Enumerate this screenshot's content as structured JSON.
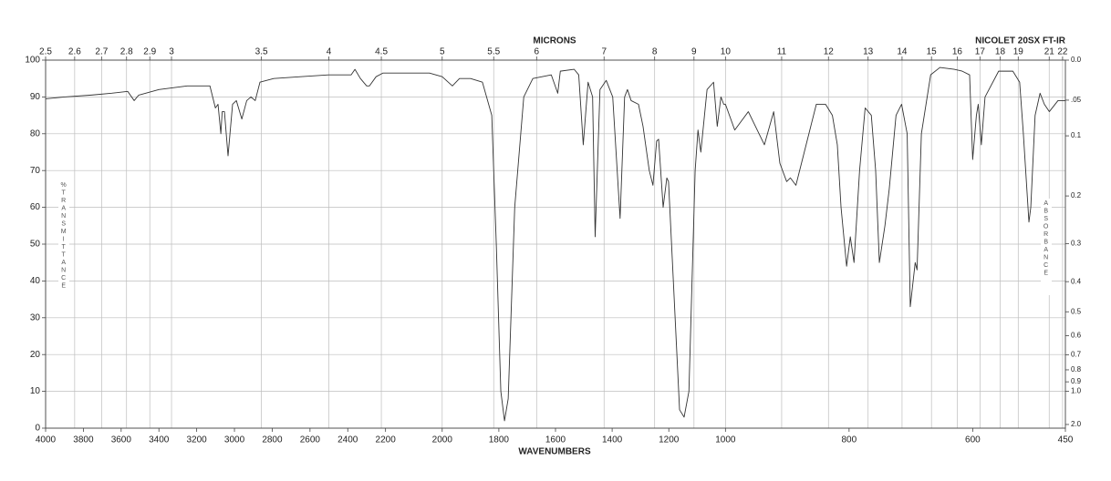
{
  "chart_data": {
    "type": "line",
    "x2label": "MICRONS",
    "annotation": "NICOLET 20SX FT-IR",
    "xlabel": "WAVENUMBERS",
    "ylabel": "%TRANSMITTANCE",
    "y2label": "ABSORBANCE",
    "xlim": [
      4000,
      450
    ],
    "xscale": "piecewise",
    "xscale_breaks": [
      2200,
      1000
    ],
    "xticks": [
      4000,
      3800,
      3600,
      3400,
      3200,
      3000,
      2800,
      2600,
      2400,
      2200,
      2000,
      1800,
      1600,
      1400,
      1200,
      1000,
      800,
      600,
      450
    ],
    "x2scale": "microns",
    "x2ticks": [
      2.5,
      2.6,
      2.7,
      2.8,
      2.9,
      3,
      3.5,
      4,
      4.5,
      5,
      5.5,
      6,
      7,
      8,
      9,
      10,
      11,
      12,
      13,
      14,
      15,
      16,
      17,
      18,
      19,
      21,
      22
    ],
    "ylim": [
      0,
      100
    ],
    "yticks": [
      0,
      10,
      20,
      30,
      40,
      50,
      60,
      70,
      80,
      90,
      100
    ],
    "y2scale": "absorbance",
    "y2ticks": [
      {
        "value": 0,
        "label": "0.0"
      },
      {
        "value": 0.05,
        "label": ".05"
      },
      0.1,
      0.2,
      0.3,
      0.4,
      0.5,
      0.6,
      0.7,
      0.8,
      0.9,
      {
        "value": 1,
        "label": "1.0"
      },
      {
        "value": 2,
        "label": "2.0"
      }
    ],
    "grid": true,
    "color": "#333333",
    "x": [
      4000,
      3900,
      3758,
      3650,
      3565,
      3531,
      3507,
      3400,
      3250,
      3130,
      3101,
      3087,
      3072,
      3065,
      3053,
      3034,
      3010,
      2990,
      2961,
      2935,
      2913,
      2890,
      2865,
      2792,
      2650,
      2502,
      2420,
      2382,
      2362,
      2333,
      2300,
      2285,
      2250,
      2213,
      2100,
      2045,
      2000,
      1964,
      1939,
      1900,
      1858,
      1825,
      1809,
      1793,
      1780,
      1767,
      1744,
      1712,
      1680,
      1615,
      1592,
      1583,
      1534,
      1518,
      1502,
      1485,
      1469,
      1460,
      1443,
      1421,
      1398,
      1372,
      1356,
      1346,
      1333,
      1307,
      1291,
      1269,
      1256,
      1243,
      1236,
      1220,
      1207,
      1201,
      1184,
      1162,
      1146,
      1129,
      1107,
      1097,
      1087,
      1065,
      1042,
      1029,
      1016,
      1006,
      1000,
      985,
      963,
      937,
      922,
      912,
      901,
      895,
      886,
      853,
      838,
      827,
      819,
      813,
      804,
      798,
      792,
      783,
      774,
      764,
      757,
      751,
      742,
      735,
      724,
      715,
      706,
      701,
      693,
      690,
      683,
      668,
      653,
      630,
      617,
      605,
      600,
      594,
      591,
      586,
      580,
      558,
      535,
      524,
      518,
      509,
      506,
      499,
      491,
      484,
      476,
      462,
      450
    ],
    "values": [
      89.5,
      90,
      90.5,
      91,
      91.5,
      89,
      90.5,
      92,
      93,
      93,
      87,
      88,
      80,
      86,
      86,
      74,
      88,
      89,
      84,
      89,
      90,
      89,
      94,
      95,
      95.5,
      96,
      96,
      96,
      97.5,
      95,
      93,
      93,
      95.5,
      96.5,
      96.5,
      96.5,
      95.5,
      93,
      95,
      95,
      94,
      85,
      50,
      10,
      2,
      8,
      60,
      90,
      95,
      96,
      91,
      97,
      97.5,
      96,
      77,
      94,
      90,
      52,
      92,
      94.5,
      90,
      57,
      90,
      92,
      89,
      88,
      82,
      70,
      66,
      78,
      78.5,
      60,
      68,
      67,
      40,
      5,
      3,
      10,
      70,
      81,
      75,
      92,
      94,
      82,
      90,
      88,
      88,
      81,
      86,
      77,
      86,
      72,
      67,
      68,
      66,
      88,
      88,
      85,
      77,
      60,
      44,
      52,
      45,
      70,
      87,
      85,
      70,
      45,
      55,
      65,
      85,
      88,
      80,
      33,
      45,
      43,
      80,
      96,
      98,
      97.5,
      97,
      96,
      73,
      85,
      88,
      77,
      90,
      97,
      97,
      94,
      80,
      56,
      60,
      85,
      91,
      88,
      86,
      89,
      89
    ]
  }
}
